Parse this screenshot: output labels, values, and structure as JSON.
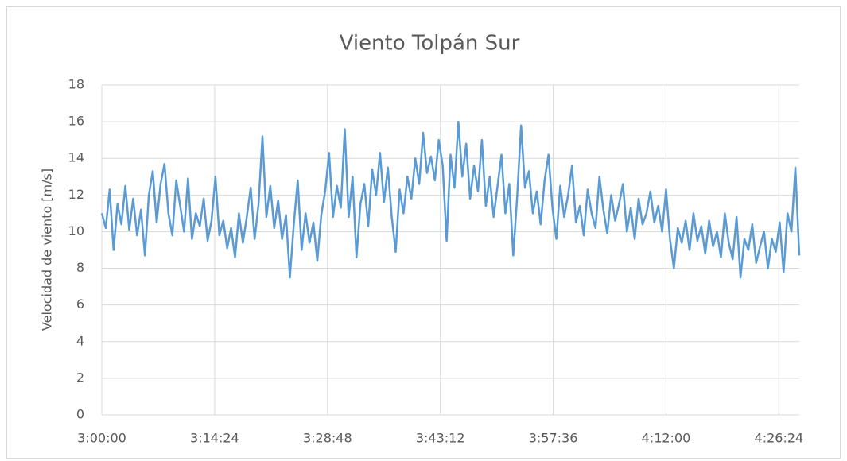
{
  "chart_data": {
    "type": "line",
    "title": "Viento Tolpán Sur",
    "y_label": "Velocidad de viento [m/s]",
    "color": "#5b9bd5",
    "grid": true,
    "x": [
      "3:00:00",
      "3:00:30",
      "3:01:00",
      "3:01:30",
      "3:02:00",
      "3:02:30",
      "3:03:00",
      "3:03:30",
      "3:04:00",
      "3:04:30",
      "3:05:00",
      "3:05:30",
      "3:06:00",
      "3:06:30",
      "3:07:00",
      "3:07:30",
      "3:08:00",
      "3:08:30",
      "3:09:00",
      "3:09:30",
      "3:10:00",
      "3:10:30",
      "3:11:00",
      "3:11:30",
      "3:12:00",
      "3:12:30",
      "3:13:00",
      "3:13:30",
      "3:14:00",
      "3:14:30",
      "3:15:00",
      "3:15:30",
      "3:16:00",
      "3:16:30",
      "3:17:00",
      "3:17:30",
      "3:18:00",
      "3:18:30",
      "3:19:00",
      "3:19:30",
      "3:20:00",
      "3:20:30",
      "3:21:00",
      "3:21:30",
      "3:22:00",
      "3:22:30",
      "3:23:00",
      "3:23:30",
      "3:24:00",
      "3:24:30",
      "3:25:00",
      "3:25:30",
      "3:26:00",
      "3:26:30",
      "3:27:00",
      "3:27:30",
      "3:28:00",
      "3:28:30",
      "3:29:00",
      "3:29:30",
      "3:30:00",
      "3:30:30",
      "3:31:00",
      "3:31:30",
      "3:32:00",
      "3:32:30",
      "3:33:00",
      "3:33:30",
      "3:34:00",
      "3:34:30",
      "3:35:00",
      "3:35:30",
      "3:36:00",
      "3:36:30",
      "3:37:00",
      "3:37:30",
      "3:38:00",
      "3:38:30",
      "3:39:00",
      "3:39:30",
      "3:40:00",
      "3:40:30",
      "3:41:00",
      "3:41:30",
      "3:42:00",
      "3:42:30",
      "3:43:00",
      "3:43:30",
      "3:44:00",
      "3:44:30",
      "3:45:00",
      "3:45:30",
      "3:46:00",
      "3:46:30",
      "3:47:00",
      "3:47:30",
      "3:48:00",
      "3:48:30",
      "3:49:00",
      "3:49:30",
      "3:50:00",
      "3:50:30",
      "3:51:00",
      "3:51:30",
      "3:52:00",
      "3:52:30",
      "3:53:00",
      "3:53:30",
      "3:54:00",
      "3:54:30",
      "3:55:00",
      "3:55:30",
      "3:56:00",
      "3:56:30",
      "3:57:00",
      "3:57:30",
      "3:58:00",
      "3:58:30",
      "3:59:00",
      "3:59:30",
      "4:00:00",
      "4:00:30",
      "4:01:00",
      "4:01:30",
      "4:02:00",
      "4:02:30",
      "4:03:00",
      "4:03:30",
      "4:04:00",
      "4:04:30",
      "4:05:00",
      "4:05:30",
      "4:06:00",
      "4:06:30",
      "4:07:00",
      "4:07:30",
      "4:08:00",
      "4:08:30",
      "4:09:00",
      "4:09:30",
      "4:10:00",
      "4:10:30",
      "4:11:00",
      "4:11:30",
      "4:12:00",
      "4:12:30",
      "4:13:00",
      "4:13:30",
      "4:14:00",
      "4:14:30",
      "4:15:00",
      "4:15:30",
      "4:16:00",
      "4:16:30",
      "4:17:00",
      "4:17:30",
      "4:18:00",
      "4:18:30",
      "4:19:00",
      "4:19:30",
      "4:20:00",
      "4:20:30",
      "4:21:00",
      "4:21:30",
      "4:22:00",
      "4:22:30",
      "4:23:00",
      "4:23:30",
      "4:24:00",
      "4:24:30",
      "4:25:00",
      "4:25:30",
      "4:26:00",
      "4:26:30",
      "4:27:00",
      "4:27:30",
      "4:28:00",
      "4:28:30",
      "4:29:00"
    ],
    "values": [
      11.0,
      10.2,
      12.3,
      9.0,
      11.5,
      10.4,
      12.5,
      10.1,
      11.8,
      9.8,
      11.2,
      8.7,
      12.0,
      13.3,
      10.5,
      12.6,
      13.7,
      11.0,
      9.8,
      12.8,
      11.4,
      10.0,
      12.9,
      9.6,
      11.0,
      10.3,
      11.8,
      9.5,
      10.6,
      13.0,
      9.8,
      10.6,
      9.1,
      10.2,
      8.6,
      11.0,
      9.4,
      10.8,
      12.4,
      9.6,
      11.5,
      15.2,
      10.8,
      12.5,
      10.2,
      11.7,
      9.6,
      10.9,
      7.5,
      10.4,
      12.8,
      9.0,
      11.0,
      9.4,
      10.5,
      8.4,
      10.9,
      12.2,
      14.3,
      10.8,
      12.5,
      11.3,
      15.6,
      10.8,
      13.0,
      8.6,
      11.5,
      12.6,
      10.3,
      13.4,
      12.0,
      14.3,
      11.6,
      13.5,
      10.8,
      8.9,
      12.3,
      11.0,
      13.0,
      11.8,
      14.0,
      12.6,
      15.4,
      13.2,
      14.1,
      12.8,
      15.0,
      13.6,
      9.5,
      14.2,
      12.4,
      16.0,
      13.0,
      14.8,
      11.8,
      13.6,
      12.2,
      15.0,
      11.4,
      13.0,
      10.8,
      12.5,
      14.2,
      11.0,
      12.6,
      8.7,
      11.9,
      15.8,
      12.4,
      13.3,
      11.0,
      12.2,
      10.4,
      12.8,
      14.2,
      11.3,
      9.6,
      12.5,
      10.8,
      12.0,
      13.6,
      10.5,
      11.4,
      9.8,
      12.3,
      11.0,
      10.2,
      13.0,
      11.2,
      9.9,
      12.0,
      10.6,
      11.5,
      12.6,
      10.0,
      11.3,
      9.6,
      11.8,
      10.4,
      11.0,
      12.2,
      10.5,
      11.4,
      10.0,
      12.3,
      9.6,
      8.0,
      10.2,
      9.4,
      10.6,
      9.0,
      11.0,
      9.5,
      10.3,
      8.8,
      10.6,
      9.2,
      10.0,
      8.6,
      11.0,
      9.4,
      8.5,
      10.8,
      7.5,
      9.6,
      9.0,
      10.4,
      8.3,
      9.2,
      10.0,
      8.0,
      9.6,
      8.9,
      10.5,
      7.8,
      11.0,
      10.0,
      13.5,
      8.7
    ],
    "xlim": [
      "3:00:00",
      "4:29:00"
    ],
    "xticks": [
      "3:00:00",
      "3:14:24",
      "3:28:48",
      "3:43:12",
      "3:57:36",
      "4:12:00",
      "4:26:24"
    ],
    "ylim": [
      0,
      18
    ],
    "yticks": [
      0,
      2,
      4,
      6,
      8,
      10,
      12,
      14,
      16,
      18
    ]
  }
}
